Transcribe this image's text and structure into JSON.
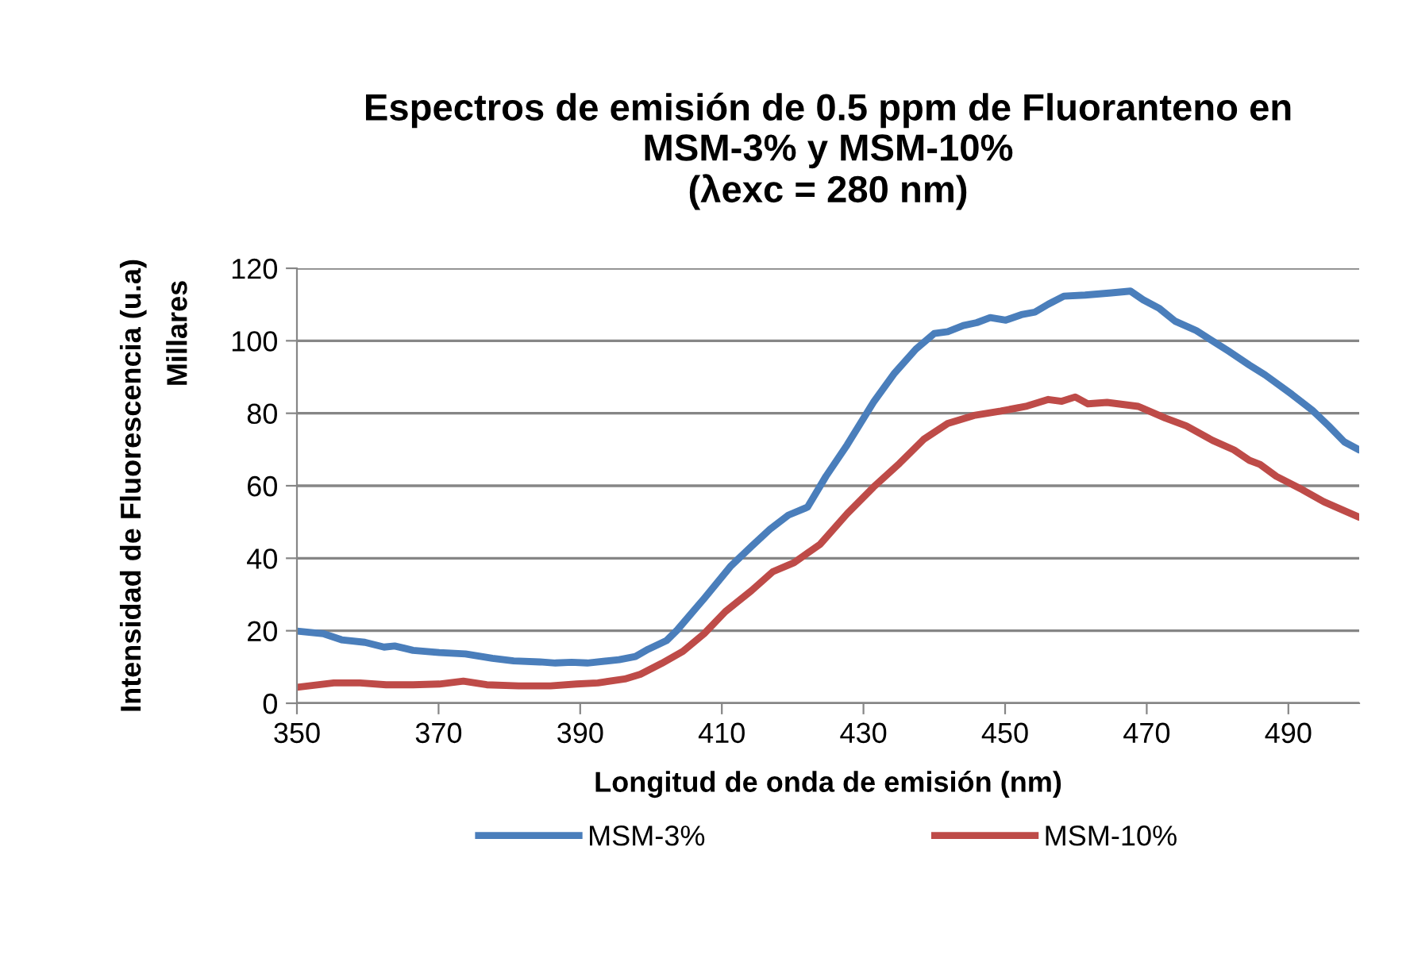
{
  "chart_data": {
    "type": "line",
    "title": "Espectros de emisión de 0.5 ppm de Fluoranteno en\nMSM-3% y MSM-10%\n(λexc = 280 nm)",
    "xlabel": "Longitud de onda de emisión (nm)",
    "ylabel": "Intensidad de Fluorescencia (u.a)",
    "annotations": [
      "Millares"
    ],
    "xlim": [
      350,
      500
    ],
    "xticks": [
      350,
      370,
      390,
      410,
      430,
      450,
      470,
      490
    ],
    "ylim": [
      0,
      120
    ],
    "yticks": [
      0,
      20,
      40,
      60,
      80,
      100,
      120
    ],
    "grid": "y",
    "legend": "bottom",
    "marker": "none",
    "line_style": "solid",
    "series": [
      {
        "name": "MSM-3%",
        "color": "#4a7ebb",
        "x": [
          350,
          353.7,
          356.3,
          359.6,
          362.3,
          363.8,
          366.4,
          370.1,
          373.8,
          377.6,
          380.6,
          384.3,
          386.5,
          388.8,
          391.0,
          395.5,
          397.8,
          399.6,
          402.2,
          403.7,
          407.5,
          411.2,
          414.2,
          416.8,
          419.4,
          422.1,
          424.7,
          427.7,
          431.4,
          434.4,
          437.4,
          440.0,
          441.9,
          444.1,
          446.0,
          447.9,
          450.1,
          452.3,
          454.2,
          456.1,
          458.3,
          461.3,
          465.0,
          467.7,
          469.5,
          471.8,
          474.0,
          477.0,
          481.5,
          484.5,
          486.7,
          490.5,
          493.4,
          495.7,
          497.9,
          500
        ],
        "values": [
          19.9,
          19.2,
          17.5,
          16.8,
          15.5,
          15.8,
          14.6,
          14.0,
          13.6,
          12.4,
          11.7,
          11.4,
          11.1,
          11.3,
          11.1,
          12.0,
          12.9,
          14.9,
          17.3,
          20.2,
          28.9,
          37.7,
          43.3,
          48.0,
          51.9,
          54.1,
          62.6,
          71.3,
          83.0,
          91.1,
          97.7,
          102.0,
          102.5,
          104.2,
          105.0,
          106.4,
          105.7,
          107.2,
          107.9,
          110.1,
          112.3,
          112.6,
          113.2,
          113.7,
          111.3,
          108.9,
          105.4,
          102.8,
          97.2,
          93.3,
          90.6,
          85.2,
          80.8,
          76.5,
          72.1,
          69.9
        ]
      },
      {
        "name": "MSM-10%",
        "color": "#be4b48",
        "x": [
          350,
          355.2,
          358.9,
          362.6,
          366.4,
          370.1,
          373.5,
          376.8,
          381.3,
          385.8,
          389.5,
          392.5,
          396.3,
          398.5,
          401.5,
          404.5,
          407.5,
          410.5,
          414.2,
          417.2,
          420.2,
          423.9,
          427.7,
          431.4,
          435.1,
          438.5,
          441.9,
          445.6,
          449.4,
          453.1,
          456.1,
          458.0,
          459.9,
          461.7,
          464.4,
          468.8,
          472.6,
          475.6,
          479.3,
          482.3,
          484.5,
          486.0,
          488.3,
          492.0,
          495.0,
          500
        ],
        "values": [
          4.4,
          5.6,
          5.6,
          5.1,
          5.1,
          5.3,
          6.1,
          5.1,
          4.8,
          4.8,
          5.3,
          5.6,
          6.7,
          8.0,
          11.0,
          14.3,
          19.2,
          25.3,
          31.1,
          36.3,
          38.8,
          43.9,
          52.3,
          59.6,
          66.2,
          72.8,
          77.2,
          79.4,
          80.6,
          82.0,
          83.8,
          83.3,
          84.5,
          82.6,
          83.0,
          81.9,
          78.7,
          76.5,
          72.5,
          69.9,
          67.0,
          65.9,
          62.6,
          58.9,
          55.6,
          51.3
        ]
      }
    ]
  }
}
